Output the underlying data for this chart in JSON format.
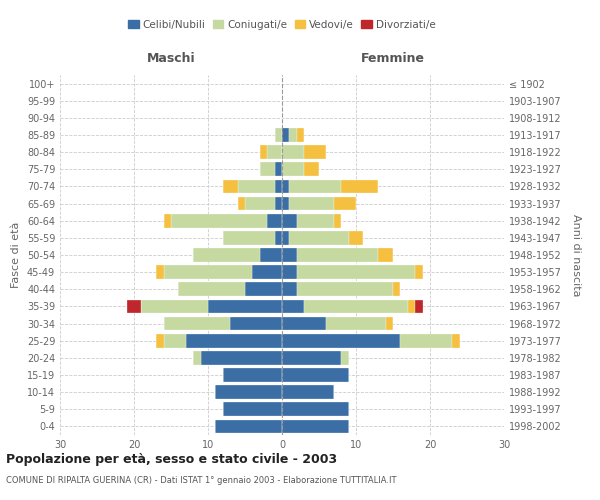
{
  "age_groups": [
    "0-4",
    "5-9",
    "10-14",
    "15-19",
    "20-24",
    "25-29",
    "30-34",
    "35-39",
    "40-44",
    "45-49",
    "50-54",
    "55-59",
    "60-64",
    "65-69",
    "70-74",
    "75-79",
    "80-84",
    "85-89",
    "90-94",
    "95-99",
    "100+"
  ],
  "birth_years": [
    "1998-2002",
    "1993-1997",
    "1988-1992",
    "1983-1987",
    "1978-1982",
    "1973-1977",
    "1968-1972",
    "1963-1967",
    "1958-1962",
    "1953-1957",
    "1948-1952",
    "1943-1947",
    "1938-1942",
    "1933-1937",
    "1928-1932",
    "1923-1927",
    "1918-1922",
    "1913-1917",
    "1908-1912",
    "1903-1907",
    "≤ 1902"
  ],
  "colors": {
    "celibi": "#3a6ea5",
    "coniugati": "#c5d9a0",
    "vedovi": "#f5c040",
    "divorziati": "#c0272d"
  },
  "male": {
    "celibi": [
      9,
      8,
      9,
      8,
      11,
      13,
      7,
      10,
      5,
      4,
      3,
      1,
      2,
      1,
      1,
      1,
      0,
      0,
      0,
      0,
      0
    ],
    "coniugati": [
      0,
      0,
      0,
      0,
      1,
      3,
      9,
      9,
      9,
      12,
      9,
      7,
      13,
      4,
      5,
      2,
      2,
      1,
      0,
      0,
      0
    ],
    "vedovi": [
      0,
      0,
      0,
      0,
      0,
      1,
      0,
      0,
      0,
      1,
      0,
      0,
      1,
      1,
      2,
      0,
      1,
      0,
      0,
      0,
      0
    ],
    "divorziati": [
      0,
      0,
      0,
      0,
      0,
      0,
      0,
      2,
      0,
      0,
      0,
      0,
      0,
      0,
      0,
      0,
      0,
      0,
      0,
      0,
      0
    ]
  },
  "female": {
    "celibi": [
      9,
      9,
      7,
      9,
      8,
      16,
      6,
      3,
      2,
      2,
      2,
      1,
      2,
      1,
      1,
      0,
      0,
      1,
      0,
      0,
      0
    ],
    "coniugati": [
      0,
      0,
      0,
      0,
      1,
      7,
      8,
      14,
      13,
      16,
      11,
      8,
      5,
      6,
      7,
      3,
      3,
      1,
      0,
      0,
      0
    ],
    "vedovi": [
      0,
      0,
      0,
      0,
      0,
      1,
      1,
      1,
      1,
      1,
      2,
      2,
      1,
      3,
      5,
      2,
      3,
      1,
      0,
      0,
      0
    ],
    "divorziati": [
      0,
      0,
      0,
      0,
      0,
      0,
      0,
      1,
      0,
      0,
      0,
      0,
      0,
      0,
      0,
      0,
      0,
      0,
      0,
      0,
      0
    ]
  },
  "xlim": 30,
  "title": "Popolazione per età, sesso e stato civile - 2003",
  "subtitle": "COMUNE DI RIPALTA GUERINA (CR) - Dati ISTAT 1° gennaio 2003 - Elaborazione TUTTITALIA.IT",
  "ylabel_left": "Fasce di età",
  "ylabel_right": "Anni di nascita",
  "xlabel_maschi": "Maschi",
  "xlabel_femmine": "Femmine",
  "legend_labels": [
    "Celibi/Nubili",
    "Coniugati/e",
    "Vedovi/e",
    "Divorziati/e"
  ],
  "bg_color": "#ffffff",
  "grid_color": "#cccccc"
}
